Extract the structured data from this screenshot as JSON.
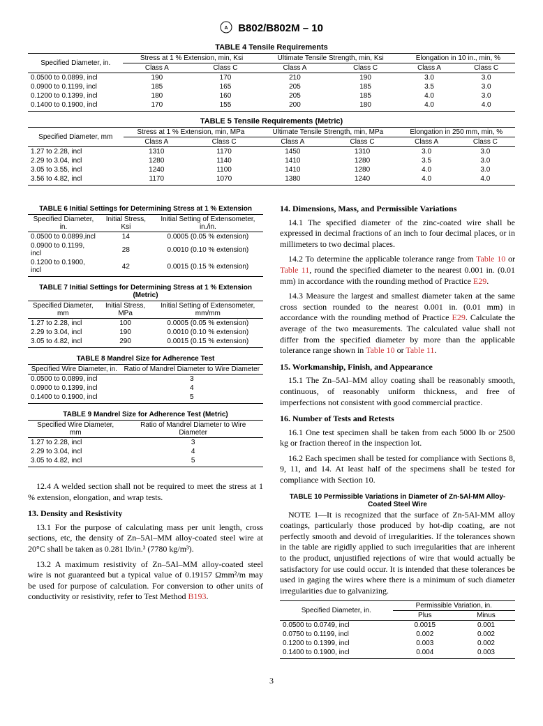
{
  "header": {
    "doc_id": "B802/B802M – 10"
  },
  "table4": {
    "title": "TABLE 4 Tensile Requirements",
    "col_head": "Specified Diameter, in.",
    "span1": "Stress at 1 % Extension, min, Ksi",
    "span2": "Ultimate Tensile Strength, min, Ksi",
    "span3": "Elongation in 10 in., min, %",
    "sub": {
      "a": "Class A",
      "c": "Class C"
    },
    "rows": [
      {
        "d": "0.0500 to 0.0899, incl",
        "s_a": "190",
        "s_c": "170",
        "u_a": "210",
        "u_c": "190",
        "e_a": "3.0",
        "e_c": "3.0"
      },
      {
        "d": "0.0900 to 0.1199, incl",
        "s_a": "185",
        "s_c": "165",
        "u_a": "205",
        "u_c": "185",
        "e_a": "3.5",
        "e_c": "3.0"
      },
      {
        "d": "0.1200 to 0.1399, incl",
        "s_a": "180",
        "s_c": "160",
        "u_a": "205",
        "u_c": "185",
        "e_a": "4.0",
        "e_c": "3.0"
      },
      {
        "d": "0.1400 to 0.1900, incl",
        "s_a": "170",
        "s_c": "155",
        "u_a": "200",
        "u_c": "180",
        "e_a": "4.0",
        "e_c": "4.0"
      }
    ]
  },
  "table5": {
    "title": "TABLE 5 Tensile Requirements (Metric)",
    "col_head": "Specified Diameter, mm",
    "span1": "Stress at 1 % Extension, min, MPa",
    "span2": "Ultimate Tensile Strength, min, MPa",
    "span3": "Elongation in 250 mm, min, %",
    "sub": {
      "a": "Class A",
      "c": "Class C"
    },
    "rows": [
      {
        "d": "1.27 to 2.28, incl",
        "s_a": "1310",
        "s_c": "1170",
        "u_a": "1450",
        "u_c": "1310",
        "e_a": "3.0",
        "e_c": "3.0"
      },
      {
        "d": "2.29 to 3.04, incl",
        "s_a": "1280",
        "s_c": "1140",
        "u_a": "1410",
        "u_c": "1280",
        "e_a": "3.5",
        "e_c": "3.0"
      },
      {
        "d": "3.05 to 3.55, incl",
        "s_a": "1240",
        "s_c": "1100",
        "u_a": "1410",
        "u_c": "1280",
        "e_a": "4.0",
        "e_c": "3.0"
      },
      {
        "d": "3.56 to 4.82, incl",
        "s_a": "1170",
        "s_c": "1070",
        "u_a": "1380",
        "u_c": "1240",
        "e_a": "4.0",
        "e_c": "4.0"
      }
    ]
  },
  "table6": {
    "title": "TABLE 6 Initial Settings for Determining Stress at 1 % Extension",
    "h1": "Specified Diameter, in.",
    "h2": "Initial Stress, Ksi",
    "h3": "Initial Setting of Extensometer, in./in.",
    "rows": [
      {
        "d": "0.0500 to 0.0899,incl",
        "s": "14",
        "e": "0.0005 (0.05 % extension)"
      },
      {
        "d": "0.0900 to 0.1199, incl",
        "s": "28",
        "e": "0.0010 (0.10 % extension)"
      },
      {
        "d": "0.1200 to 0.1900, incl",
        "s": "42",
        "e": "0.0015 (0.15 % extension)"
      }
    ]
  },
  "table7": {
    "title": "TABLE 7 Initial Settings for Determining Stress at 1 % Extension (Metric)",
    "h1": "Specified Diameter, mm",
    "h2": "Initial Stress, MPa",
    "h3": "Initial Setting of Extensometer, mm/mm",
    "rows": [
      {
        "d": "1.27 to 2.28, incl",
        "s": "100",
        "e": "0.0005 (0.05 % extension)"
      },
      {
        "d": "2.29 to 3.04, incl",
        "s": "190",
        "e": "0.0010 (0.10 % extension)"
      },
      {
        "d": "3.05 to 4.82, incl",
        "s": "290",
        "e": "0.0015 (0.15 % extension)"
      }
    ]
  },
  "table8": {
    "title": "TABLE 8 Mandrel Size for Adherence Test",
    "h1": "Specified Wire Diameter, in.",
    "h2": "Ratio of Mandrel Diameter to Wire Diameter",
    "rows": [
      {
        "d": "0.0500 to 0.0899, incl",
        "r": "3"
      },
      {
        "d": "0.0900 to 0.1399, incl",
        "r": "4"
      },
      {
        "d": "0.1400 to 0.1900, incl",
        "r": "5"
      }
    ]
  },
  "table9": {
    "title": "TABLE 9 Mandrel Size for Adherence Test (Metric)",
    "h1": "Specified Wire Diameter, mm",
    "h2": "Ratio of Mandrel Diameter to Wire Diameter",
    "rows": [
      {
        "d": "1.27 to 2.28, incl",
        "r": "3"
      },
      {
        "d": "2.29 to 3.04, incl",
        "r": "4"
      },
      {
        "d": "3.05 to 4.82, incl",
        "r": "5"
      }
    ]
  },
  "body": {
    "p12_4": "12.4 A welded section shall not be required to meet the stress at 1 % extension, elongation, and wrap tests.",
    "s13": "13. Density and Resistivity",
    "p13_1": "13.1 For the purpose of calculating mass per unit length, cross sections, etc, the density of Zn–5Al–MM alloy-coated steel wire at 20°C shall be taken as 0.281 lb/in.³ (7780 kg/m³).",
    "p13_2a": "13.2 A maximum resistivity of Zn–5Al–MM alloy-coated steel wire is not guaranteed but a typical value of 0.19157 Ωmm²/m may be used for purpose of calculation. For conversion to other units of conductivity or resistivity, refer to Test Method ",
    "ref_b193": "B193",
    "p13_2b": ".",
    "s14": "14. Dimensions, Mass, and Permissible Variations",
    "p14_1": "14.1 The specified diameter of the zinc-coated wire shall be expressed in decimal fractions of an inch to four decimal places, or in millimeters to two decimal places.",
    "p14_2a": "14.2 To determine the applicable tolerance range from ",
    "ref_t10": "Table 10",
    "or": " or ",
    "ref_t11": "Table 11",
    "p14_2b": ", round the specified diameter to the nearest 0.001 in. (0.01 mm) in accordance with the rounding method of Practice ",
    "ref_e29": "E29",
    "period": ".",
    "p14_3a": "14.3 Measure the largest and smallest diameter taken at the same cross section rounded to the nearest 0.001 in. (0.01 mm) in accordance with the rounding method of Practice ",
    "p14_3b": ". Calculate the average of the two measurements. The calculated value shall not differ from the specified diameter by more than the applicable tolerance range shown in ",
    "s15": "15. Workmanship, Finish, and Appearance",
    "p15_1": "15.1 The Zn–5Al–MM alloy coating shall be reasonably smooth, continuous, of reasonably uniform thickness, and free of imperfections not consistent with good commercial practice.",
    "s16": "16. Number of Tests and Retests",
    "p16_1": "16.1 One test specimen shall be taken from each 5000 lb or 2500 kg or fraction thereof in the inspection lot.",
    "p16_2": "16.2 Each specimen shall be tested for compliance with Sections 8, 9, 11, and 14. At least half of the specimens shall be tested for compliance with Section 10."
  },
  "table10": {
    "title": "TABLE 10 Permissible Variations in Diameter of Zn-5Al-MM Alloy-Coated Steel Wire",
    "note_label": "NOTE 1—",
    "note": "It is recognized that the surface of Zn-5Al-MM alloy coatings, particularly those produced by hot-dip coating, are not perfectly smooth and devoid of irregularities. If the tolerances shown in the table are rigidly applied to such irregularities that are inherent to the product, unjustified rejections of wire that would actually be satisfactory for use could occur. It is intended that these tolerances be used in gaging the wires where there is a minimum of such diameter irregularities due to galvanizing.",
    "h1": "Specified Diameter, in.",
    "span": "Permissible Variation, in.",
    "h2": "Plus",
    "h3": "Minus",
    "rows": [
      {
        "d": "0.0500 to 0.0749, incl",
        "p": "0.0015",
        "m": "0.001"
      },
      {
        "d": "0.0750 to 0.1199, incl",
        "p": "0.002",
        "m": "0.002"
      },
      {
        "d": "0.1200 to 0.1399, incl",
        "p": "0.003",
        "m": "0.002"
      },
      {
        "d": "0.1400 to 0.1900, incl",
        "p": "0.004",
        "m": "0.003"
      }
    ]
  },
  "page": "3"
}
